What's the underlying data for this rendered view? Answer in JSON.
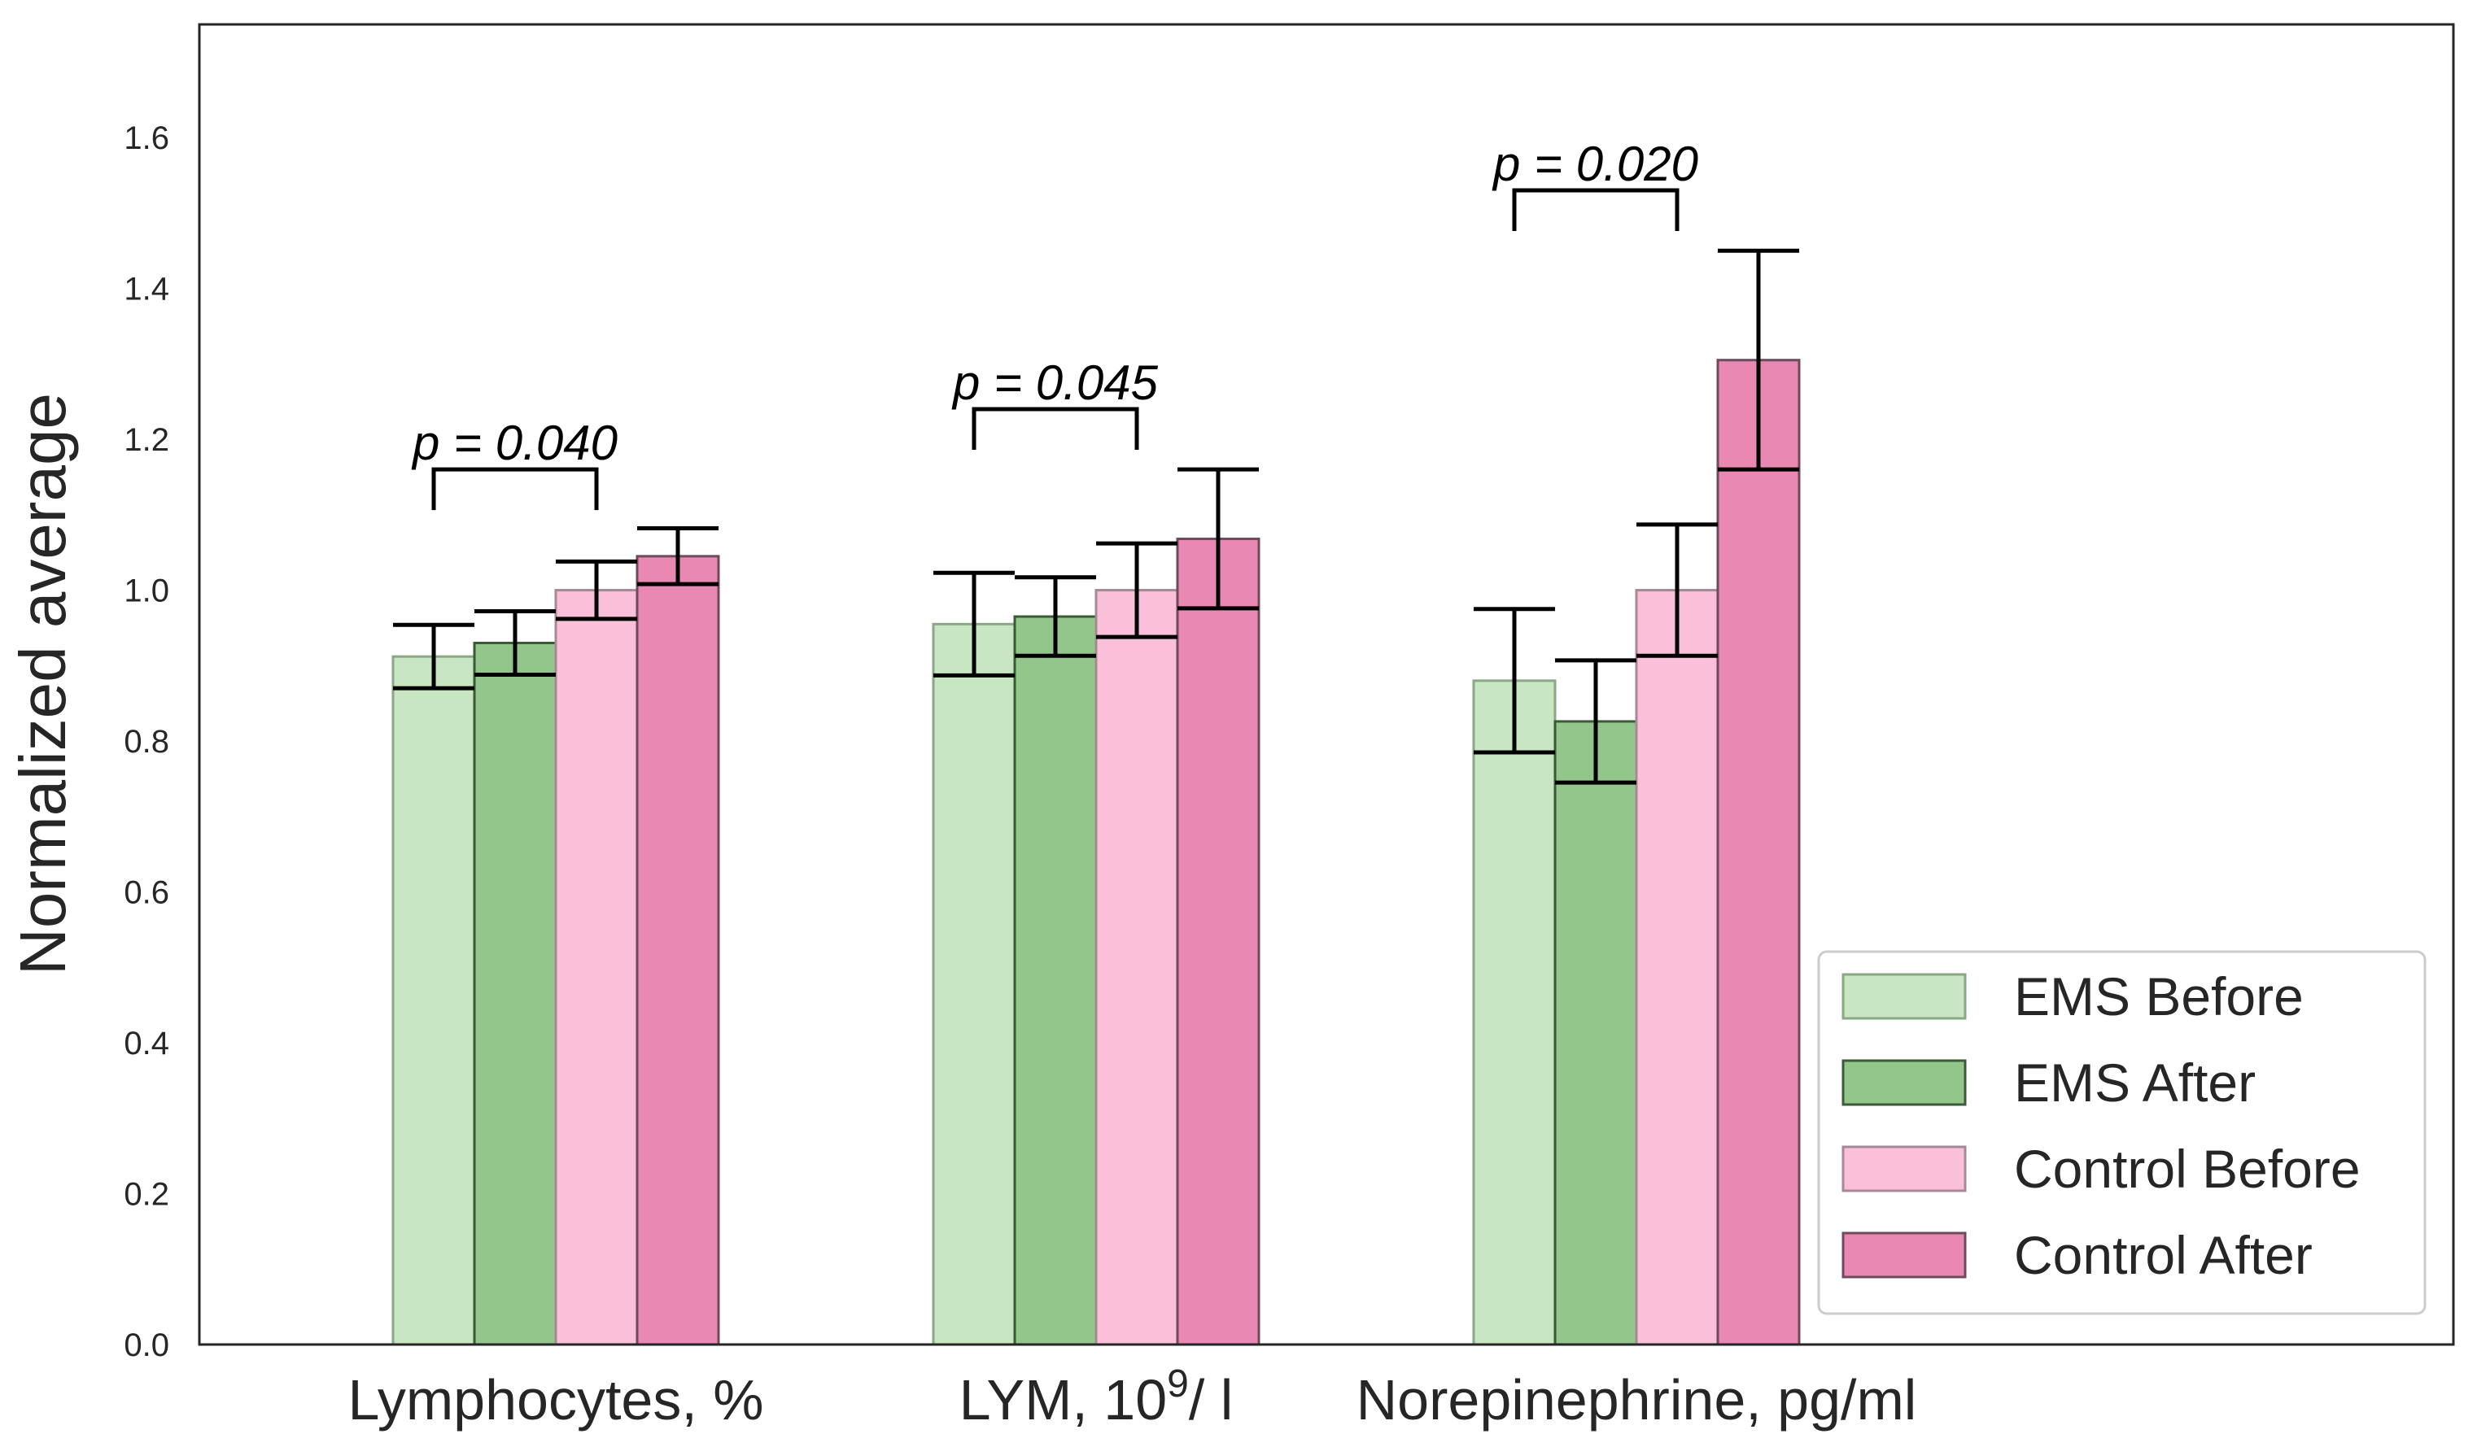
{
  "chart_data": {
    "type": "bar",
    "title": "",
    "xlabel": "",
    "ylabel": "Normalized average",
    "ylim": [
      0,
      1.75
    ],
    "yticks": [
      "0.0",
      "0.2",
      "0.4",
      "0.6",
      "0.8",
      "1.0",
      "1.2",
      "1.4",
      "1.6"
    ],
    "grid": false,
    "categories": [
      {
        "base": "Lymphocytes, %",
        "sup": ""
      },
      {
        "base": "LYM, 10",
        "sup": "9",
        "suffix": "/ l"
      },
      {
        "base": "Norepinephrine, pg/ml",
        "sup": ""
      }
    ],
    "series": [
      {
        "name": "EMS Before",
        "color": "#c9e6c3",
        "edge": "#8aa884",
        "values": [
          0.912,
          0.955,
          0.88
        ],
        "errors": [
          0.042,
          0.068,
          0.095
        ]
      },
      {
        "name": "EMS After",
        "color": "#93c68b",
        "edge": "#3b5a38",
        "values": [
          0.93,
          0.965,
          0.826
        ],
        "errors": [
          0.042,
          0.052,
          0.081
        ]
      },
      {
        "name": "Control Before",
        "color": "#fbc0d9",
        "edge": "#a58a96",
        "values": [
          1.0,
          1.0,
          1.0
        ],
        "errors": [
          0.038,
          0.062,
          0.087
        ]
      },
      {
        "name": "Control After",
        "color": "#ea88b4",
        "edge": "#6e4a5c",
        "values": [
          1.045,
          1.068,
          1.305
        ],
        "errors": [
          0.037,
          0.092,
          0.145
        ]
      }
    ],
    "annotations": [
      {
        "category": 0,
        "from_series": 0,
        "to_series": 2,
        "level": 1.16,
        "text": "p = 0.040"
      },
      {
        "category": 1,
        "from_series": 0,
        "to_series": 2,
        "level": 1.24,
        "text": "p = 0.045"
      },
      {
        "category": 2,
        "from_series": 0,
        "to_series": 2,
        "level": 1.53,
        "text": "p = 0.020"
      }
    ],
    "legend": {
      "location": "lower-right"
    }
  }
}
